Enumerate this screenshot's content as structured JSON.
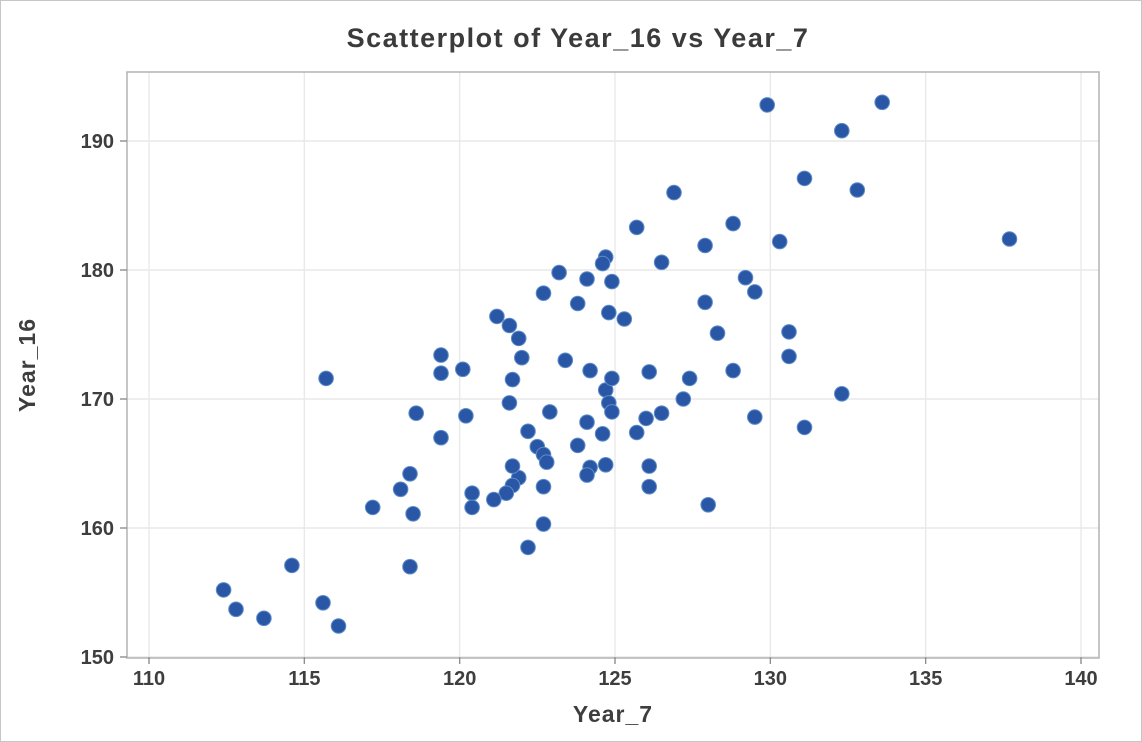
{
  "chart_data": {
    "type": "scatter",
    "title": "Scatterplot of Year_16 vs Year_7",
    "xlabel": "Year_7",
    "ylabel": "Year_16",
    "x_ticks": [
      110,
      115,
      120,
      125,
      130,
      135,
      140
    ],
    "y_ticks": [
      150,
      160,
      170,
      180,
      190
    ],
    "xlim": [
      109.3,
      140.6
    ],
    "ylim": [
      149.9,
      195.4
    ],
    "grid": true,
    "legend": "none",
    "marker_color": "#2a57a5",
    "marker_edge_color": "#5f8cc9",
    "points": [
      [
        112.4,
        155.2
      ],
      [
        112.8,
        153.7
      ],
      [
        113.7,
        153.0
      ],
      [
        114.6,
        157.1
      ],
      [
        115.6,
        154.2
      ],
      [
        116.1,
        152.4
      ],
      [
        118.4,
        157.0
      ],
      [
        115.7,
        171.6
      ],
      [
        117.2,
        161.6
      ],
      [
        118.1,
        163.0
      ],
      [
        118.4,
        164.2
      ],
      [
        118.5,
        161.1
      ],
      [
        118.6,
        168.9
      ],
      [
        119.4,
        173.4
      ],
      [
        119.4,
        172.0
      ],
      [
        119.4,
        167.0
      ],
      [
        120.1,
        172.3
      ],
      [
        120.2,
        168.7
      ],
      [
        120.4,
        162.7
      ],
      [
        120.4,
        161.6
      ],
      [
        121.2,
        176.4
      ],
      [
        121.6,
        175.7
      ],
      [
        121.9,
        174.7
      ],
      [
        122.0,
        173.2
      ],
      [
        121.7,
        171.5
      ],
      [
        121.6,
        169.7
      ],
      [
        121.9,
        163.9
      ],
      [
        121.7,
        163.3
      ],
      [
        121.5,
        162.7
      ],
      [
        121.1,
        162.2
      ],
      [
        121.7,
        164.8
      ],
      [
        122.2,
        158.5
      ],
      [
        122.7,
        160.3
      ],
      [
        122.7,
        178.2
      ],
      [
        122.9,
        169.0
      ],
      [
        122.2,
        167.5
      ],
      [
        122.5,
        166.3
      ],
      [
        122.7,
        165.7
      ],
      [
        122.8,
        165.1
      ],
      [
        122.7,
        163.2
      ],
      [
        123.2,
        179.8
      ],
      [
        123.8,
        177.4
      ],
      [
        123.4,
        173.0
      ],
      [
        123.8,
        166.4
      ],
      [
        124.1,
        179.3
      ],
      [
        124.2,
        172.2
      ],
      [
        124.1,
        168.2
      ],
      [
        124.7,
        181.0
      ],
      [
        124.6,
        180.5
      ],
      [
        124.9,
        179.1
      ],
      [
        124.8,
        176.7
      ],
      [
        125.3,
        176.2
      ],
      [
        124.7,
        170.7
      ],
      [
        124.8,
        169.7
      ],
      [
        124.9,
        169.0
      ],
      [
        124.6,
        167.3
      ],
      [
        124.9,
        171.6
      ],
      [
        124.2,
        164.7
      ],
      [
        124.1,
        164.1
      ],
      [
        124.7,
        164.9
      ],
      [
        125.7,
        183.3
      ],
      [
        125.7,
        167.4
      ],
      [
        126.0,
        168.5
      ],
      [
        126.5,
        168.9
      ],
      [
        126.1,
        172.1
      ],
      [
        126.1,
        164.8
      ],
      [
        126.1,
        163.2
      ],
      [
        126.5,
        180.6
      ],
      [
        126.9,
        186.0
      ],
      [
        127.2,
        170.0
      ],
      [
        127.4,
        171.6
      ],
      [
        127.9,
        177.5
      ],
      [
        127.9,
        181.9
      ],
      [
        128.8,
        172.2
      ],
      [
        128.8,
        183.6
      ],
      [
        128.3,
        175.1
      ],
      [
        128.0,
        161.8
      ],
      [
        129.2,
        179.4
      ],
      [
        129.5,
        178.3
      ],
      [
        129.5,
        168.6
      ],
      [
        129.9,
        192.8
      ],
      [
        130.3,
        182.2
      ],
      [
        130.6,
        175.2
      ],
      [
        130.6,
        173.3
      ],
      [
        131.1,
        187.1
      ],
      [
        131.1,
        167.8
      ],
      [
        132.3,
        190.8
      ],
      [
        132.3,
        170.4
      ],
      [
        132.8,
        186.2
      ],
      [
        133.6,
        193.0
      ],
      [
        137.7,
        182.4
      ]
    ]
  },
  "colors": {
    "frame": "#b7b7b7",
    "grid": "#e9e9e9",
    "tick": "#8f8f8f",
    "text": "#3e3e3e",
    "page_border": "#c6c6c6"
  }
}
